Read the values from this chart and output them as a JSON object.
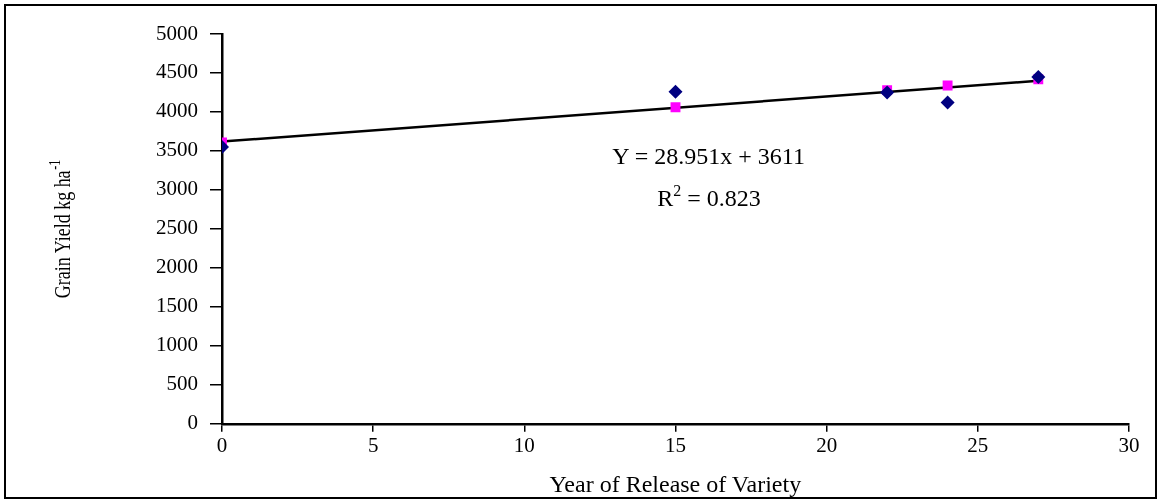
{
  "chart_data": {
    "type": "scatter",
    "xlabel": "Year of Release of Variety",
    "ylabel": "Grain Yield kg ha$^{-1}$",
    "xlim": [
      0,
      30
    ],
    "xticks": [
      0,
      5,
      10,
      15,
      20,
      25,
      30
    ],
    "ylim": [
      0,
      5000
    ],
    "yticks": [
      0,
      500,
      1000,
      1500,
      2000,
      2500,
      3000,
      3500,
      4000,
      4500,
      5000
    ],
    "grid": false,
    "legend": false,
    "series": [
      {
        "color": "#000080",
        "marker": "diamond",
        "x": [
          0,
          15,
          22,
          24,
          27
        ],
        "values": [
          3550,
          4260,
          4250,
          4120,
          4450
        ]
      },
      {
        "color": "#ff00ff",
        "marker": "square",
        "x": [
          0,
          15,
          22,
          24,
          27
        ],
        "values": [
          3610,
          4060,
          4280,
          4340,
          4420
        ]
      },
      {
        "type": "line",
        "color": "#000000",
        "marker": "none",
        "x": [
          0,
          27
        ],
        "values": [
          3620,
          4400
        ]
      }
    ],
    "annotations": [
      "Y = 28.951x + 3611",
      "R$^{2}$ = 0.823"
    ]
  }
}
